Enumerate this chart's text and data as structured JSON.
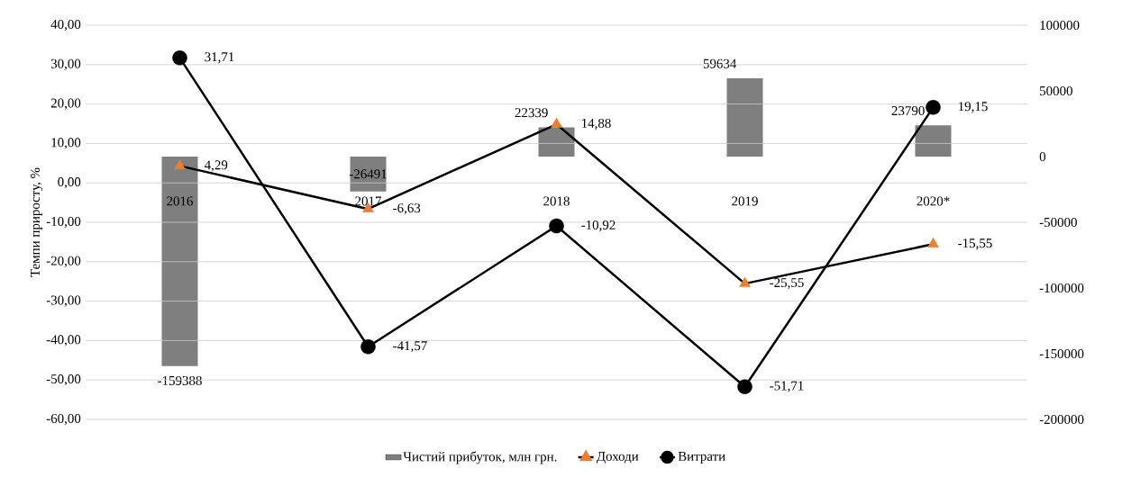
{
  "chart_data": {
    "type": "bar",
    "categories": [
      "2016",
      "2017",
      "2018",
      "2019",
      "2020*"
    ],
    "ylabel": "Темпи приросту, %",
    "series": [
      {
        "name": "Чистий прибуток, млн грн.",
        "axis": "y2",
        "color": "#7f7f7f",
        "values": [
          -159388,
          -26491,
          22339,
          59634,
          23790
        ],
        "value_labels": [
          "-159388",
          "-26491",
          "22339",
          "59634",
          "23790"
        ]
      },
      {
        "name": "Доходи",
        "type": "line",
        "color": "#000000",
        "marker": "triangle",
        "colors": [
          "#ed7d31",
          "#ed7d31",
          "#ed7d31",
          "#ed7d31",
          "#ed7d31"
        ],
        "values": [
          4.29,
          -6.63,
          14.88,
          -25.55,
          -15.55
        ],
        "value_labels": [
          "4,29",
          "-6,63",
          "14,88",
          "-25,55",
          "-15,55"
        ]
      },
      {
        "name": "Витрати",
        "type": "line",
        "color": "#000000",
        "marker": "circle",
        "values": [
          31.71,
          -41.57,
          -10.92,
          -51.71,
          19.15
        ],
        "value_labels": [
          "31,71",
          "-41,57",
          "-10,92",
          "-51,71",
          "19,15"
        ]
      }
    ],
    "ylim": [
      -60,
      40
    ],
    "yticks": [
      {
        "value": -60,
        "label": "-60,00"
      },
      {
        "value": -50,
        "label": "-50,00"
      },
      {
        "value": -40,
        "label": "-40,00"
      },
      {
        "value": -30,
        "label": "-30,00"
      },
      {
        "value": -20,
        "label": "-20,00"
      },
      {
        "value": -10,
        "label": "-10,00"
      },
      {
        "value": 0,
        "label": "0,00"
      },
      {
        "value": 10,
        "label": "10,00"
      },
      {
        "value": 20,
        "label": "20,00"
      },
      {
        "value": 30,
        "label": "30,00"
      },
      {
        "value": 40,
        "label": "40,00"
      }
    ],
    "y2lim": [
      -200000,
      100000
    ],
    "y2ticks": [
      -200000,
      -150000,
      -100000,
      -50000,
      0,
      50000,
      100000
    ],
    "grid": "y",
    "legend": "bottom"
  }
}
